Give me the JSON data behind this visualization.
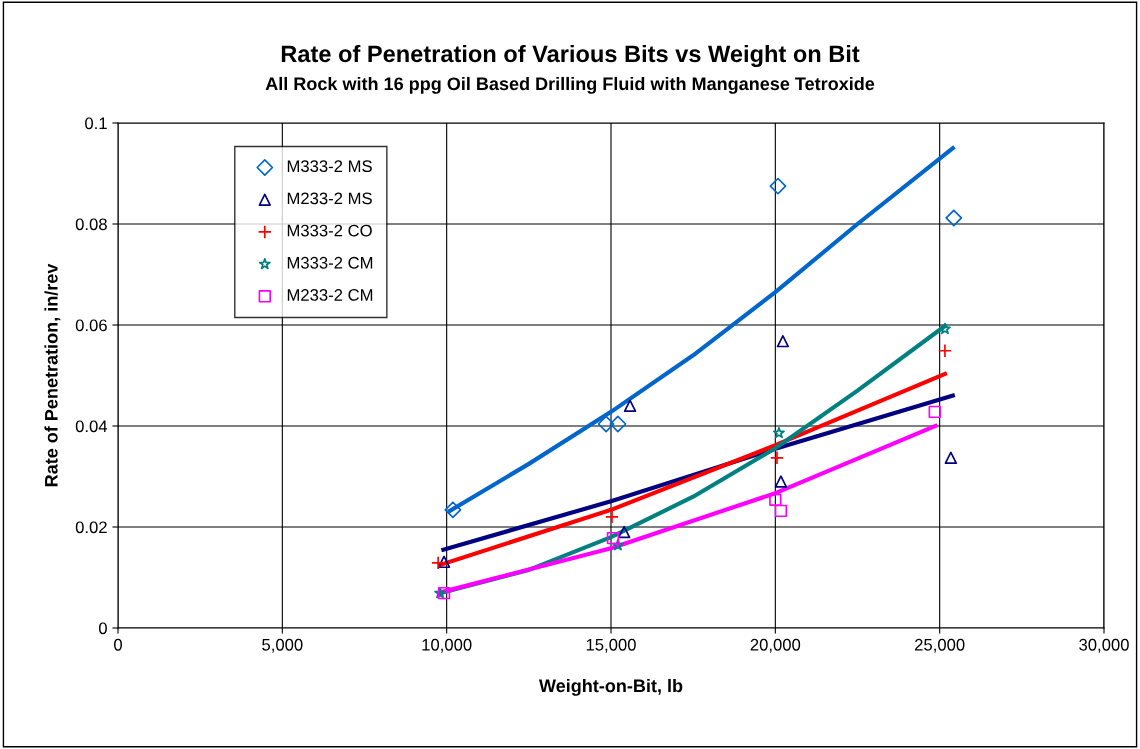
{
  "chart_data": {
    "type": "scatter",
    "title": "Rate of Penetration of Various Bits vs Weight on Bit",
    "subtitle": "All Rock with 16 ppg Oil Based Drilling Fluid with Manganese Tetroxide",
    "xlabel": "Weight-on-Bit, lb",
    "ylabel": "Rate of Penetration, in/rev",
    "xlim": [
      0,
      30000
    ],
    "ylim": [
      0,
      0.1
    ],
    "xticks": [
      {
        "value": 0,
        "label": "0"
      },
      {
        "value": 5000,
        "label": "5,000"
      },
      {
        "value": 10000,
        "label": "10,000"
      },
      {
        "value": 15000,
        "label": "15,000"
      },
      {
        "value": 20000,
        "label": "20,000"
      },
      {
        "value": 25000,
        "label": "25,000"
      },
      {
        "value": 30000,
        "label": "30,000"
      }
    ],
    "yticks": [
      0,
      0.02,
      0.04,
      0.06,
      0.08,
      0.1
    ],
    "grid": true,
    "legend": "top left",
    "series": [
      {
        "name": "M333-2 MS",
        "color": "#0066cc",
        "marker": "diamond",
        "x": [
          10190,
          14850,
          15210,
          20080,
          25430
        ],
        "values": [
          0.0234,
          0.0404,
          0.0404,
          0.0875,
          0.0812
        ]
      },
      {
        "name": "M233-2 MS",
        "color": "#000080",
        "marker": "triangle",
        "x": [
          9920,
          15400,
          15580,
          20170,
          20230,
          25340
        ],
        "values": [
          0.0131,
          0.019,
          0.044,
          0.029,
          0.0568,
          0.0337
        ]
      },
      {
        "name": "M333-2 CO",
        "color": "#ff0000",
        "marker": "cross",
        "x": [
          9740,
          15030,
          20050,
          25160
        ],
        "values": [
          0.0129,
          0.022,
          0.0337,
          0.0549
        ]
      },
      {
        "name": "M333-2 CM",
        "color": "#008080",
        "marker": "star",
        "x": [
          9800,
          15210,
          20110,
          25160
        ],
        "values": [
          0.0069,
          0.0164,
          0.0386,
          0.0592
        ]
      },
      {
        "name": "M233-2 CM",
        "color": "#ff00ff",
        "marker": "square",
        "x": [
          9920,
          15060,
          20000,
          20170,
          24850
        ],
        "values": [
          0.0069,
          0.0178,
          0.0254,
          0.0232,
          0.0428
        ]
      },
      {
        "type": "line",
        "color": "#0066cc",
        "x": [
          10100,
          12500,
          15000,
          17500,
          20000,
          22500,
          25400
        ],
        "values": [
          0.0232,
          0.0325,
          0.0428,
          0.054,
          0.0665,
          0.08,
          0.095
        ]
      },
      {
        "type": "line",
        "color": "#000080",
        "x": [
          9900,
          15000,
          20000,
          25400
        ],
        "values": [
          0.0155,
          0.0251,
          0.0355,
          0.046
        ]
      },
      {
        "type": "line",
        "color": "#ff0000",
        "x": [
          9800,
          15000,
          20000,
          25160
        ],
        "values": [
          0.0125,
          0.0234,
          0.0362,
          0.0503
        ]
      },
      {
        "type": "line",
        "color": "#008080",
        "x": [
          9800,
          12500,
          15000,
          17500,
          20000,
          22500,
          25160
        ],
        "values": [
          0.0069,
          0.0115,
          0.018,
          0.026,
          0.0356,
          0.047,
          0.0598
        ]
      },
      {
        "type": "line",
        "color": "#ff00ff",
        "x": [
          9900,
          15000,
          20000,
          24870
        ],
        "values": [
          0.0072,
          0.0158,
          0.0267,
          0.04
        ]
      }
    ]
  }
}
